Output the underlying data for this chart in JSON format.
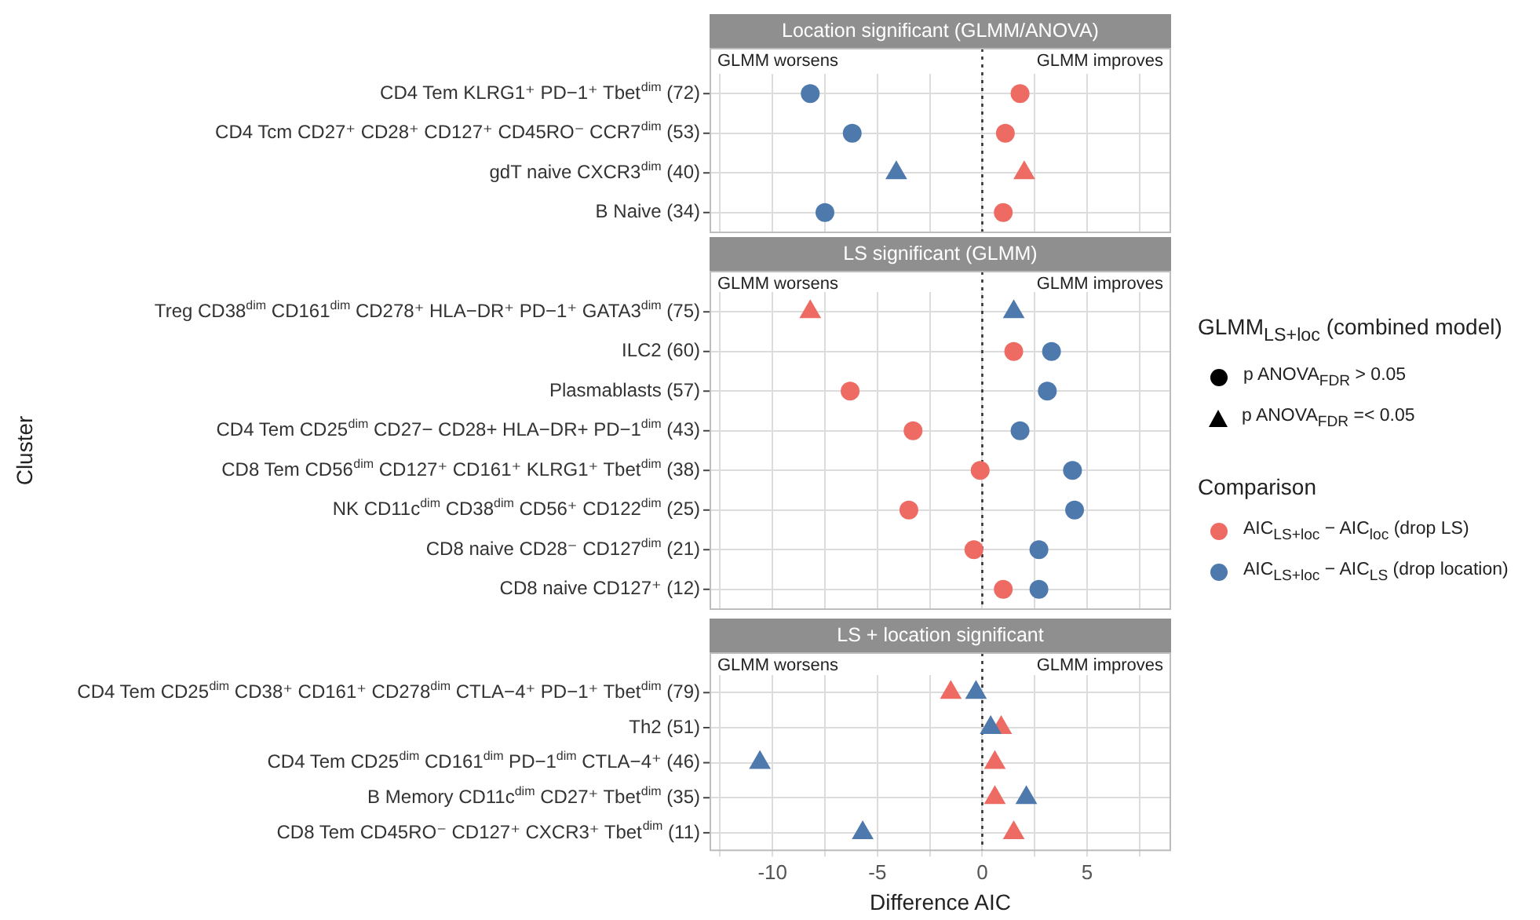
{
  "chart_data": [
    {
      "type": "scatter",
      "orientation": "horizontal",
      "title": "Location significant (GLMM/ANOVA)",
      "categories": [
        "CD4 Tem KLRG1⁺ PD−1⁺ Tbet$^{dim}$ (72)",
        "CD4 Tcm CD27⁺ CD28⁺ CD127⁺ CD45RO⁻ CCR7$^{dim}$ (53)",
        "gdT naive CXCR3$^{dim}$ (40)",
        "B Naive (34)"
      ],
      "series": [
        {
          "color": "#ed6b62",
          "marker": "circle",
          "values": [
            1.8,
            1.1,
            null,
            1.0
          ]
        },
        {
          "color": "#ed6b62",
          "marker": "triangle",
          "values": [
            null,
            null,
            2.0,
            null
          ]
        },
        {
          "color": "#4e79ad",
          "marker": "circle",
          "values": [
            -8.2,
            -6.2,
            null,
            -7.5
          ]
        },
        {
          "color": "#4e79ad",
          "marker": "triangle",
          "values": [
            null,
            null,
            -4.1,
            null
          ]
        }
      ],
      "xlim": [
        -13,
        9
      ],
      "xticks": [
        {
          "value": -12.5,
          "label": null
        },
        -10,
        {
          "value": -7.5,
          "label": null
        },
        -5,
        {
          "value": -2.5,
          "label": null
        },
        0,
        {
          "value": 2.5,
          "label": null
        },
        5,
        {
          "value": 7.5,
          "label": null
        }
      ],
      "ref_lines": [
        {
          "axis": "x",
          "value": 0,
          "color": "#333333",
          "line_style": "dotted"
        }
      ],
      "annotations": [
        "GLMM worsens",
        "GLMM improves"
      ],
      "grid": true,
      "tick_labels": "y",
      "legend": false
    },
    {
      "type": "scatter",
      "orientation": "horizontal",
      "title": "LS significant (GLMM)",
      "ylabel": "Cluster",
      "categories": [
        "Treg CD38$^{dim}$ CD161$^{dim}$ CD278⁺ HLA−DR⁺ PD−1⁺ GATA3$^{dim}$ (75)",
        "ILC2 (60)",
        "Plasmablasts (57)",
        "CD4 Tem CD25$^{dim}$ CD27− CD28+ HLA−DR+ PD−1$^{dim}$ (43)",
        "CD8 Tem CD56$^{dim}$ CD127⁺ CD161⁺ KLRG1⁺ Tbet$^{dim}$ (38)",
        "NK CD11c$^{dim}$ CD38$^{dim}$ CD56⁺ CD122$^{dim}$ (25)",
        "CD8 naive CD28⁻ CD127$^{dim}$ (21)",
        "CD8 naive CD127⁺ (12)"
      ],
      "series": [
        {
          "name": "AIC$_{LS+loc}$ − AIC$_{loc}$ (drop LS)",
          "color": "#ed6b62",
          "marker": "circle",
          "values": [
            null,
            1.5,
            -6.3,
            -3.3,
            -0.1,
            -3.5,
            -0.4,
            1.0
          ]
        },
        {
          "color": "#ed6b62",
          "marker": "triangle",
          "values": [
            -8.2,
            null,
            null,
            null,
            null,
            null,
            null,
            null
          ]
        },
        {
          "name": "AIC$_{LS+loc}$ − AIC$_{LS}$ (drop location)",
          "color": "#4e79ad",
          "marker": "circle",
          "values": [
            null,
            3.3,
            3.1,
            1.8,
            4.3,
            4.4,
            2.7,
            2.7
          ]
        },
        {
          "color": "#4e79ad",
          "marker": "triangle",
          "values": [
            1.5,
            null,
            null,
            null,
            null,
            null,
            null,
            null
          ]
        }
      ],
      "xlim": [
        -13,
        9
      ],
      "xticks": [
        {
          "value": -12.5,
          "label": null
        },
        -10,
        {
          "value": -7.5,
          "label": null
        },
        -5,
        {
          "value": -2.5,
          "label": null
        },
        0,
        {
          "value": 2.5,
          "label": null
        },
        5,
        {
          "value": 7.5,
          "label": null
        }
      ],
      "ref_lines": [
        {
          "axis": "x",
          "value": 0,
          "color": "#333333",
          "line_style": "dotted"
        }
      ],
      "annotations": [
        "GLMM worsens",
        "GLMM improves",
        "GLMM$_{LS+loc}$ (combined model)",
        "p ANOVA$_{FDR}$ > 0.05",
        "p ANOVA$_{FDR}$ =< 0.05"
      ],
      "legend_title": "Comparison",
      "grid": true,
      "tick_labels": "y",
      "legend": "right"
    },
    {
      "type": "scatter",
      "orientation": "horizontal",
      "title": "LS + location significant",
      "xlabel": "Difference AIC",
      "categories": [
        "CD4 Tem CD25$^{dim}$ CD38⁺ CD161⁺ CD278$^{dim}$ CTLA−4⁺ PD−1⁺ Tbet$^{dim}$ (79)",
        "Th2 (51)",
        "CD4 Tem CD25$^{dim}$ CD161$^{dim}$ PD−1$^{dim}$ CTLA−4⁺ (46)",
        "B Memory CD11c$^{dim}$ CD27⁺ Tbet$^{dim}$ (35)",
        "CD8 Tem CD45RO⁻ CD127⁺ CXCR3⁺ Tbet$^{dim}$ (11)"
      ],
      "series": [
        {
          "color": "#4e79ad",
          "marker": "triangle",
          "values": [
            -0.3,
            0.4,
            -10.6,
            2.1,
            -5.7
          ]
        },
        {
          "color": "#ed6b62",
          "marker": "triangle",
          "values": [
            -1.5,
            0.9,
            0.6,
            0.6,
            1.5
          ]
        }
      ],
      "xlim": [
        -13,
        9
      ],
      "xticks": [
        {
          "value": -12.5,
          "label": null
        },
        -10,
        {
          "value": -7.5,
          "label": null
        },
        -5,
        {
          "value": -2.5,
          "label": null
        },
        0,
        {
          "value": 2.5,
          "label": null
        },
        5,
        {
          "value": 7.5,
          "label": null
        }
      ],
      "ref_lines": [
        {
          "axis": "x",
          "value": 0,
          "color": "#333333",
          "line_style": "dotted"
        }
      ],
      "annotations": [
        "GLMM worsens",
        "GLMM improves"
      ],
      "grid": true,
      "legend": false
    }
  ]
}
